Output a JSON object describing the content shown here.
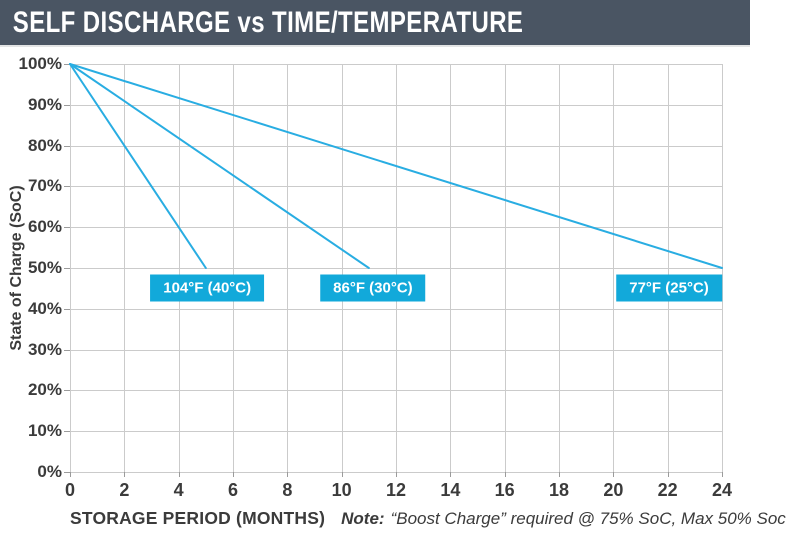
{
  "header": {
    "title": "SELF DISCHARGE vs TIME/TEMPERATURE"
  },
  "colors": {
    "header_bg": "#4a5563",
    "line": "#29ade2",
    "label_box": "#12a9da",
    "grid": "#cbcbcb",
    "axis_text": "#3b3b3b",
    "background": "#ffffff"
  },
  "chart_data": {
    "type": "line",
    "title": "SELF DISCHARGE vs TIME/TEMPERATURE",
    "xlabel": "STORAGE PERIOD (MONTHS)",
    "ylabel": "State of Charge (SoC)",
    "xlim": [
      0,
      24
    ],
    "ylim": [
      0,
      100
    ],
    "x_ticks": [
      0,
      2,
      4,
      6,
      8,
      10,
      12,
      14,
      16,
      18,
      20,
      22,
      24
    ],
    "y_ticks": [
      0,
      10,
      20,
      30,
      40,
      50,
      60,
      70,
      80,
      90,
      100
    ],
    "y_tick_suffix": "%",
    "grid": true,
    "legend_position": "inline-label-boxes",
    "series": [
      {
        "name": "104°F (40°C)",
        "x": [
          0,
          5
        ],
        "y": [
          100,
          50
        ],
        "label_anchor": [
          5.05,
          45
        ]
      },
      {
        "name": "86°F (30°C)",
        "x": [
          0,
          11
        ],
        "y": [
          100,
          50
        ],
        "label_anchor": [
          11.15,
          45
        ]
      },
      {
        "name": "77°F (25°C)",
        "x": [
          0,
          24
        ],
        "y": [
          100,
          50
        ],
        "label_anchor": [
          22.05,
          45
        ]
      }
    ],
    "note": {
      "prefix": "Note:",
      "text": "“Boost Charge” required @ 75% SoC, Max 50% Soc"
    }
  }
}
